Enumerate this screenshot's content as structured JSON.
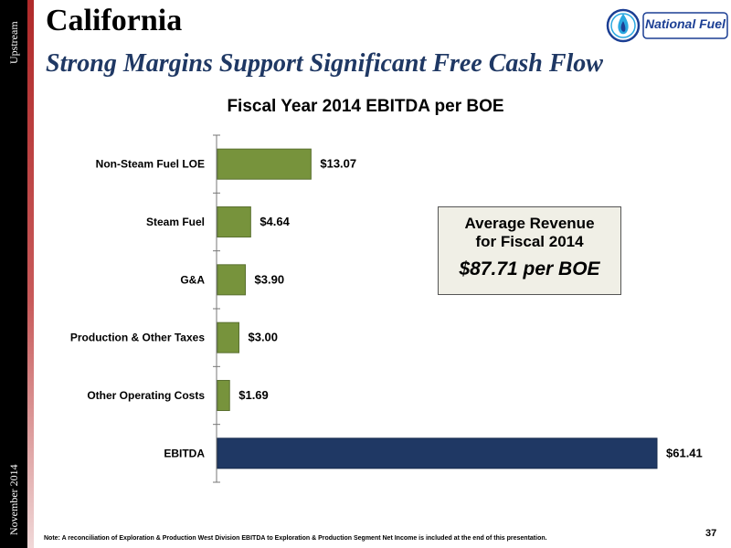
{
  "sidebar": {
    "top_label": "Upstream",
    "bottom_label": "November 2014"
  },
  "header": {
    "title": "California",
    "subtitle": "Strong Margins Support Significant Free Cash Flow",
    "logo_text": "National Fuel",
    "logo_icon": "flame-drop-icon"
  },
  "chart_data": {
    "type": "bar",
    "orientation": "horizontal",
    "title": "Fiscal Year 2014 EBITDA per BOE",
    "categories": [
      "Non-Steam Fuel LOE",
      "Steam Fuel",
      "G&A",
      "Production & Other Taxes",
      "Other Operating Costs",
      "EBITDA"
    ],
    "values": [
      13.07,
      4.64,
      3.9,
      3.0,
      1.69,
      61.41
    ],
    "data_labels": [
      "$13.07",
      "$4.64",
      "$3.90",
      "$3.00",
      "$1.69",
      "$61.41"
    ],
    "colors": [
      "#77933c",
      "#77933c",
      "#77933c",
      "#77933c",
      "#77933c",
      "#1f3864"
    ],
    "xlim": [
      0,
      61.41
    ],
    "grid": false,
    "legend": "none"
  },
  "callout": {
    "line1": "Average Revenue",
    "line2": "for Fiscal 2014",
    "value": "$87.71 per BOE"
  },
  "footer": {
    "note": "Note: A reconciliation of Exploration & Production West Division EBITDA to Exploration & Production Segment Net Income is included at the end of this presentation.",
    "page_number": "37"
  }
}
